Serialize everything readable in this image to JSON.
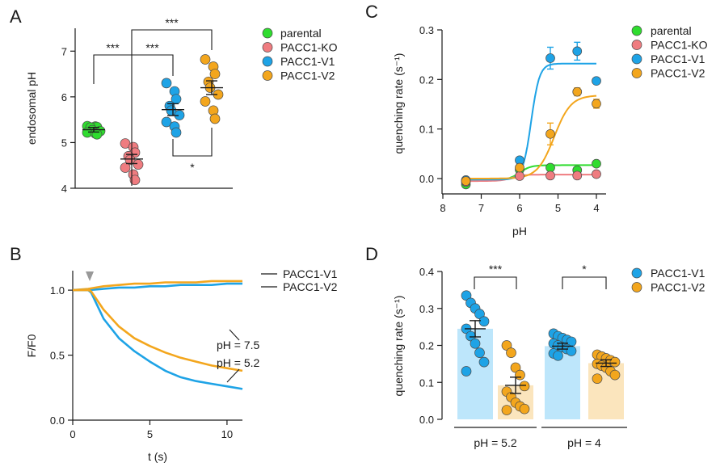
{
  "colors": {
    "parental": "#2fdc2f",
    "PACC1-KO": "#ef7c80",
    "PACC1-V1": "#1ea3e6",
    "PACC1-V2": "#f3a61d",
    "bar_v1": "#bde6fb",
    "bar_v2": "#fbe5bd"
  },
  "chart_data": [
    {
      "id": "A",
      "panel_label": "A",
      "type": "scatter",
      "ylabel": "endosomal pH",
      "ylim": [
        4,
        7.5
      ],
      "yticks": [
        "4",
        "5",
        "6",
        "7"
      ],
      "legend": [
        "parental",
        "PACC1-KO",
        "PACC1-V1",
        "PACC1-V2"
      ],
      "groups": [
        {
          "name": "parental",
          "mean": 5.28,
          "sem": 0.05,
          "points": [
            5.36,
            5.35,
            5.34,
            5.33,
            5.27,
            5.25,
            5.22,
            5.2,
            5.18
          ]
        },
        {
          "name": "PACC1-KO",
          "mean": 4.64,
          "sem": 0.1,
          "points": [
            4.98,
            4.9,
            4.78,
            4.7,
            4.62,
            4.52,
            4.45,
            4.3,
            4.18
          ]
        },
        {
          "name": "PACC1-V1",
          "mean": 5.72,
          "sem": 0.13,
          "points": [
            6.3,
            6.12,
            5.95,
            5.8,
            5.7,
            5.6,
            5.45,
            5.35,
            5.22
          ]
        },
        {
          "name": "PACC1-V2",
          "mean": 6.2,
          "sem": 0.15,
          "points": [
            6.82,
            6.66,
            6.5,
            6.33,
            6.2,
            6.05,
            5.9,
            5.7,
            5.52
          ]
        }
      ],
      "significance": [
        {
          "from": "parental",
          "to": "PACC1-KO",
          "label": "***"
        },
        {
          "from": "PACC1-KO",
          "to": "PACC1-V1",
          "label": "***"
        },
        {
          "from": "PACC1-KO",
          "to": "PACC1-V2",
          "label": "***"
        },
        {
          "from": "PACC1-V1",
          "to": "PACC1-V2",
          "label": "*"
        }
      ]
    },
    {
      "id": "B",
      "panel_label": "B",
      "type": "line",
      "xlabel": "t (s)",
      "ylabel": "F/F0",
      "xlim": [
        0,
        11
      ],
      "ylim": [
        0,
        1.15
      ],
      "xticks": [
        "0",
        "5",
        "10"
      ],
      "yticks": [
        "0.0",
        "0.5",
        "1.0"
      ],
      "stimulus_time": 1.1,
      "legend": [
        "PACC1-V1",
        "PACC1-V2"
      ],
      "annotations": [
        "pH = 7.5",
        "pH = 5.2"
      ],
      "series": [
        {
          "name": "PACC1-V1",
          "condition": "pH = 7.5",
          "x": [
            0,
            1,
            2,
            3,
            4,
            5,
            6,
            7,
            8,
            9,
            10,
            11
          ],
          "y": [
            1.0,
            1.0,
            1.01,
            1.02,
            1.02,
            1.03,
            1.03,
            1.04,
            1.04,
            1.04,
            1.05,
            1.05
          ]
        },
        {
          "name": "PACC1-V2",
          "condition": "pH = 7.5",
          "x": [
            0,
            1,
            2,
            3,
            4,
            5,
            6,
            7,
            8,
            9,
            10,
            11
          ],
          "y": [
            1.0,
            1.01,
            1.03,
            1.04,
            1.05,
            1.05,
            1.06,
            1.06,
            1.06,
            1.07,
            1.07,
            1.07
          ]
        },
        {
          "name": "PACC1-V1",
          "condition": "pH = 5.2",
          "x": [
            0,
            1,
            1.2,
            2,
            3,
            4,
            5,
            6,
            7,
            8,
            9,
            10,
            11
          ],
          "y": [
            1.0,
            1.0,
            0.98,
            0.78,
            0.63,
            0.53,
            0.45,
            0.38,
            0.33,
            0.3,
            0.28,
            0.26,
            0.24
          ]
        },
        {
          "name": "PACC1-V2",
          "condition": "pH = 5.2",
          "x": [
            0,
            1,
            1.2,
            2,
            3,
            4,
            5,
            6,
            7,
            8,
            9,
            10,
            11
          ],
          "y": [
            1.0,
            1.0,
            0.99,
            0.85,
            0.72,
            0.63,
            0.57,
            0.52,
            0.48,
            0.45,
            0.42,
            0.4,
            0.38
          ]
        }
      ]
    },
    {
      "id": "C",
      "panel_label": "C",
      "type": "scatter",
      "xlabel": "pH",
      "ylabel": "quenching rate (s⁻¹)",
      "xlim": [
        8,
        3.8
      ],
      "ylim": [
        -0.02,
        0.3
      ],
      "xticks": [
        "8",
        "7",
        "6",
        "5",
        "4"
      ],
      "yticks": [
        "0.0",
        "0.1",
        "0.2",
        "0.3"
      ],
      "legend": [
        "parental",
        "PACC1-KO",
        "PACC1-V1",
        "PACC1-V2"
      ],
      "x": [
        7.4,
        6.0,
        5.2,
        4.5,
        4.0
      ],
      "series": [
        {
          "name": "parental",
          "y": [
            -0.012,
            0.018,
            0.022,
            0.017,
            0.03
          ],
          "err": [
            0,
            0,
            0,
            0,
            0
          ],
          "fit": {
            "bottom": -0.003,
            "top": 0.027,
            "pKa": 6.0,
            "n": 3.0
          }
        },
        {
          "name": "PACC1-KO",
          "y": [
            -0.007,
            0.005,
            0.006,
            0.006,
            0.009
          ],
          "err": [
            0,
            0,
            0,
            0,
            0
          ],
          "fit": {
            "bottom": -0.005,
            "top": 0.008,
            "pKa": 6.2,
            "n": 3.0
          }
        },
        {
          "name": "PACC1-V1",
          "y": [
            -0.003,
            0.037,
            0.243,
            0.257,
            0.197
          ],
          "err": [
            0,
            0,
            0.022,
            0.018,
            0
          ],
          "fit": {
            "bottom": -0.002,
            "top": 0.232,
            "pKa": 5.7,
            "n": 4.0
          }
        },
        {
          "name": "PACC1-V2",
          "y": [
            -0.005,
            0.022,
            0.09,
            0.175,
            0.151
          ],
          "err": [
            0,
            0,
            0.022,
            0.008,
            0.009
          ],
          "fit": {
            "bottom": 0.0,
            "top": 0.168,
            "pKa": 5.1,
            "n": 2.0
          }
        }
      ]
    },
    {
      "id": "D",
      "panel_label": "D",
      "type": "bar",
      "ylabel": "quenching rate (s⁻¹)",
      "ylim": [
        0,
        0.4
      ],
      "yticks": [
        "0.0",
        "0.1",
        "0.2",
        "0.3",
        "0.4"
      ],
      "categories": [
        "pH = 5.2",
        "pH = 4"
      ],
      "legend": [
        "PACC1-V1",
        "PACC1-V2"
      ],
      "series": [
        {
          "name": "PACC1-V1",
          "values": [
            0.245,
            0.198
          ],
          "sem": [
            0.022,
            0.008
          ],
          "points": [
            [
              0.335,
              0.315,
              0.3,
              0.285,
              0.265,
              0.245,
              0.225,
              0.205,
              0.18,
              0.155,
              0.13
            ],
            [
              0.232,
              0.225,
              0.22,
              0.215,
              0.21,
              0.205,
              0.2,
              0.195,
              0.19,
              0.185,
              0.178,
              0.172
            ]
          ]
        },
        {
          "name": "PACC1-V2",
          "values": [
            0.092,
            0.152
          ],
          "sem": [
            0.022,
            0.009
          ],
          "points": [
            [
              0.2,
              0.18,
              0.14,
              0.12,
              0.09,
              0.075,
              0.06,
              0.045,
              0.035,
              0.028,
              0.025
            ],
            [
              0.175,
              0.17,
              0.165,
              0.16,
              0.155,
              0.15,
              0.145,
              0.14,
              0.13,
              0.12,
              0.11
            ]
          ]
        }
      ],
      "significance": [
        {
          "category": "pH = 5.2",
          "label": "***"
        },
        {
          "category": "pH = 4",
          "label": "*"
        }
      ]
    }
  ]
}
